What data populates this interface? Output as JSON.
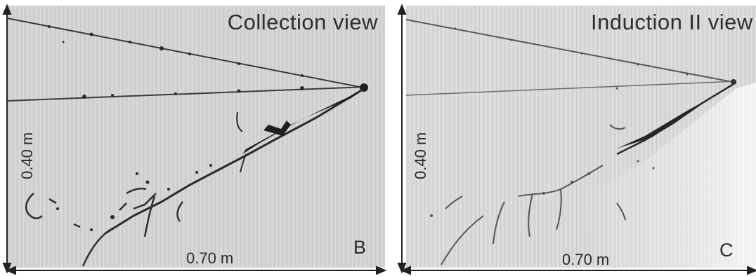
{
  "panels": [
    {
      "id": "B",
      "title": "Collection  view",
      "letter": "B",
      "horizontal_label": "0.70 m",
      "vertical_label": "0.40 m"
    },
    {
      "id": "C",
      "title": "Induction II  view",
      "letter": "C",
      "horizontal_label": "0.70 m",
      "vertical_label": "0.40 m"
    }
  ],
  "colors": {
    "panel_b_background": "#d3d3d3",
    "panel_c_background": "#d9d9d9",
    "track": "#2a2a2a",
    "arrow": "#222222"
  }
}
